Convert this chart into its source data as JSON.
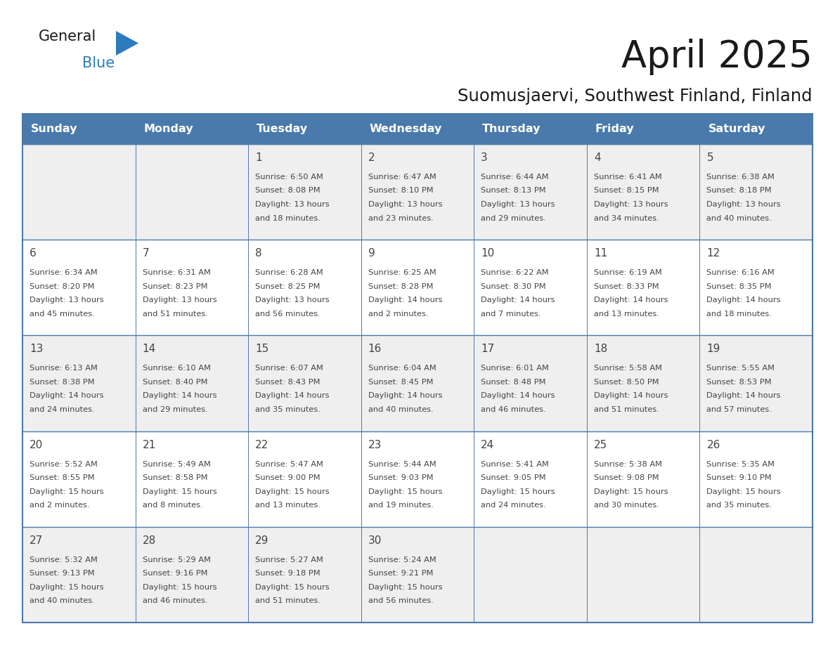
{
  "title": "April 2025",
  "subtitle": "Suomusjaervi, Southwest Finland, Finland",
  "days_of_week": [
    "Sunday",
    "Monday",
    "Tuesday",
    "Wednesday",
    "Thursday",
    "Friday",
    "Saturday"
  ],
  "header_bg": "#4a7aab",
  "header_text": "#FFFFFF",
  "cell_bg_odd": "#EFEFEF",
  "cell_bg_even": "#FFFFFF",
  "border_color": "#4a7aab",
  "text_color": "#444444",
  "title_color": "#1a1a1a",
  "subtitle_color": "#1a1a1a",
  "logo_black": "#1a1a1a",
  "logo_blue": "#2B7BBD",
  "weeks": [
    [
      {
        "day": "",
        "info": ""
      },
      {
        "day": "",
        "info": ""
      },
      {
        "day": "1",
        "info": "Sunrise: 6:50 AM\nSunset: 8:08 PM\nDaylight: 13 hours\nand 18 minutes."
      },
      {
        "day": "2",
        "info": "Sunrise: 6:47 AM\nSunset: 8:10 PM\nDaylight: 13 hours\nand 23 minutes."
      },
      {
        "day": "3",
        "info": "Sunrise: 6:44 AM\nSunset: 8:13 PM\nDaylight: 13 hours\nand 29 minutes."
      },
      {
        "day": "4",
        "info": "Sunrise: 6:41 AM\nSunset: 8:15 PM\nDaylight: 13 hours\nand 34 minutes."
      },
      {
        "day": "5",
        "info": "Sunrise: 6:38 AM\nSunset: 8:18 PM\nDaylight: 13 hours\nand 40 minutes."
      }
    ],
    [
      {
        "day": "6",
        "info": "Sunrise: 6:34 AM\nSunset: 8:20 PM\nDaylight: 13 hours\nand 45 minutes."
      },
      {
        "day": "7",
        "info": "Sunrise: 6:31 AM\nSunset: 8:23 PM\nDaylight: 13 hours\nand 51 minutes."
      },
      {
        "day": "8",
        "info": "Sunrise: 6:28 AM\nSunset: 8:25 PM\nDaylight: 13 hours\nand 56 minutes."
      },
      {
        "day": "9",
        "info": "Sunrise: 6:25 AM\nSunset: 8:28 PM\nDaylight: 14 hours\nand 2 minutes."
      },
      {
        "day": "10",
        "info": "Sunrise: 6:22 AM\nSunset: 8:30 PM\nDaylight: 14 hours\nand 7 minutes."
      },
      {
        "day": "11",
        "info": "Sunrise: 6:19 AM\nSunset: 8:33 PM\nDaylight: 14 hours\nand 13 minutes."
      },
      {
        "day": "12",
        "info": "Sunrise: 6:16 AM\nSunset: 8:35 PM\nDaylight: 14 hours\nand 18 minutes."
      }
    ],
    [
      {
        "day": "13",
        "info": "Sunrise: 6:13 AM\nSunset: 8:38 PM\nDaylight: 14 hours\nand 24 minutes."
      },
      {
        "day": "14",
        "info": "Sunrise: 6:10 AM\nSunset: 8:40 PM\nDaylight: 14 hours\nand 29 minutes."
      },
      {
        "day": "15",
        "info": "Sunrise: 6:07 AM\nSunset: 8:43 PM\nDaylight: 14 hours\nand 35 minutes."
      },
      {
        "day": "16",
        "info": "Sunrise: 6:04 AM\nSunset: 8:45 PM\nDaylight: 14 hours\nand 40 minutes."
      },
      {
        "day": "17",
        "info": "Sunrise: 6:01 AM\nSunset: 8:48 PM\nDaylight: 14 hours\nand 46 minutes."
      },
      {
        "day": "18",
        "info": "Sunrise: 5:58 AM\nSunset: 8:50 PM\nDaylight: 14 hours\nand 51 minutes."
      },
      {
        "day": "19",
        "info": "Sunrise: 5:55 AM\nSunset: 8:53 PM\nDaylight: 14 hours\nand 57 minutes."
      }
    ],
    [
      {
        "day": "20",
        "info": "Sunrise: 5:52 AM\nSunset: 8:55 PM\nDaylight: 15 hours\nand 2 minutes."
      },
      {
        "day": "21",
        "info": "Sunrise: 5:49 AM\nSunset: 8:58 PM\nDaylight: 15 hours\nand 8 minutes."
      },
      {
        "day": "22",
        "info": "Sunrise: 5:47 AM\nSunset: 9:00 PM\nDaylight: 15 hours\nand 13 minutes."
      },
      {
        "day": "23",
        "info": "Sunrise: 5:44 AM\nSunset: 9:03 PM\nDaylight: 15 hours\nand 19 minutes."
      },
      {
        "day": "24",
        "info": "Sunrise: 5:41 AM\nSunset: 9:05 PM\nDaylight: 15 hours\nand 24 minutes."
      },
      {
        "day": "25",
        "info": "Sunrise: 5:38 AM\nSunset: 9:08 PM\nDaylight: 15 hours\nand 30 minutes."
      },
      {
        "day": "26",
        "info": "Sunrise: 5:35 AM\nSunset: 9:10 PM\nDaylight: 15 hours\nand 35 minutes."
      }
    ],
    [
      {
        "day": "27",
        "info": "Sunrise: 5:32 AM\nSunset: 9:13 PM\nDaylight: 15 hours\nand 40 minutes."
      },
      {
        "day": "28",
        "info": "Sunrise: 5:29 AM\nSunset: 9:16 PM\nDaylight: 15 hours\nand 46 minutes."
      },
      {
        "day": "29",
        "info": "Sunrise: 5:27 AM\nSunset: 9:18 PM\nDaylight: 15 hours\nand 51 minutes."
      },
      {
        "day": "30",
        "info": "Sunrise: 5:24 AM\nSunset: 9:21 PM\nDaylight: 15 hours\nand 56 minutes."
      },
      {
        "day": "",
        "info": ""
      },
      {
        "day": "",
        "info": ""
      },
      {
        "day": "",
        "info": ""
      }
    ]
  ]
}
